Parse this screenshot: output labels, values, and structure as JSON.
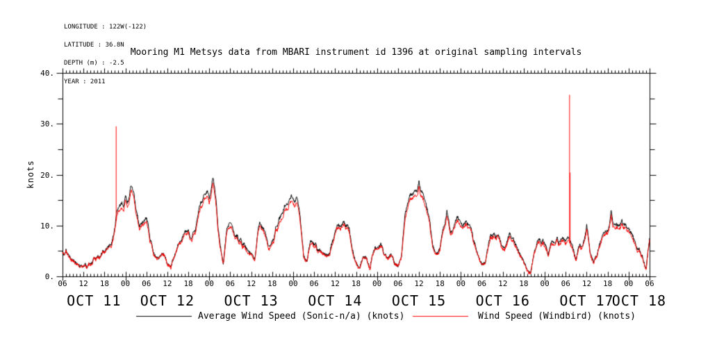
{
  "meta": {
    "longitude": "LONGITUDE : 122W(-122)",
    "latitude": "LATITUDE : 36.8N",
    "depth": "DEPTH (m) : -2.5",
    "year": "YEAR : 2011"
  },
  "title": "Mooring M1 Metsys data from MBARI instrument id 1396 at original sampling intervals",
  "chart_data": {
    "type": "line",
    "title": "Mooring M1 Metsys data from MBARI instrument id 1396 at original sampling intervals",
    "xlabel": "",
    "ylabel": "knots",
    "ylim": [
      0,
      40
    ],
    "y_major_ticks": [
      0,
      10,
      20,
      30,
      40
    ],
    "y_tick_labels": [
      "0.",
      "10.",
      "20.",
      "30.",
      "40."
    ],
    "y_minor_step": 5,
    "x_start": "2011-10-11 06:00",
    "x_end": "2011-10-18 06:00",
    "x_hours_total": 168,
    "x_major_step_hours": 6,
    "x_minor_step_hours": 1,
    "x_hour_labels": [
      "06",
      "12",
      "18",
      "00",
      "06",
      "12",
      "18",
      "00",
      "06",
      "12",
      "18",
      "00",
      "06",
      "12",
      "18",
      "00",
      "06",
      "12",
      "18",
      "00",
      "06",
      "12",
      "18",
      "00",
      "06",
      "12",
      "18",
      "00",
      "06"
    ],
    "x_date_labels": [
      "OCT 11",
      "OCT 12",
      "OCT 13",
      "OCT 14",
      "OCT 15",
      "OCT 16",
      "OCT 17",
      "OCT 18"
    ],
    "x_date_centers_hours": [
      9,
      30,
      54,
      78,
      102,
      126,
      150,
      165
    ],
    "grid": false,
    "legend_position": "bottom",
    "background_color": "#ffffff",
    "axis_color": "#000000",
    "series": [
      {
        "name": "Average Wind Speed (Sonic-n/a) (knots)",
        "color": "#000000",
        "sampling": "hourly estimate of noisy original trace, knots, from Oct 11 06:00 to Oct 18 06:00",
        "hourly_knots": [
          4.5,
          4.8,
          3.6,
          2.8,
          2.2,
          1.8,
          2.2,
          2.0,
          2.6,
          3.4,
          3.8,
          4.3,
          5.0,
          5.6,
          6.8,
          10.0,
          14.5,
          14.0,
          15.2,
          15.5,
          18.3,
          13.5,
          9.8,
          10.4,
          12.0,
          7.9,
          5.2,
          3.2,
          4.6,
          4.4,
          2.3,
          2.0,
          3.8,
          5.6,
          7.5,
          8.4,
          8.6,
          8.0,
          9.2,
          12.5,
          15.0,
          15.5,
          16.3,
          19.0,
          14.2,
          6.5,
          2.6,
          8.6,
          11.0,
          8.6,
          7.6,
          7.0,
          6.3,
          5.3,
          4.4,
          3.4,
          10.0,
          10.2,
          8.6,
          6.0,
          6.6,
          9.2,
          11.6,
          12.6,
          13.6,
          14.6,
          15.3,
          15.0,
          12.0,
          4.4,
          3.0,
          7.2,
          6.6,
          5.6,
          5.0,
          4.6,
          4.2,
          6.2,
          9.0,
          10.2,
          10.8,
          10.2,
          9.6,
          5.6,
          2.6,
          1.4,
          4.2,
          3.4,
          1.8,
          5.0,
          5.5,
          7.0,
          4.5,
          3.5,
          4.5,
          2.5,
          2.0,
          3.5,
          12.0,
          15.5,
          16.0,
          16.5,
          17.8,
          16.5,
          13.5,
          11.0,
          6.5,
          4.2,
          6.0,
          9.5,
          12.4,
          8.5,
          10.5,
          11.2,
          11.0,
          10.0,
          10.5,
          9.5,
          6.5,
          4.0,
          2.2,
          2.6,
          7.0,
          8.2,
          8.2,
          7.6,
          5.2,
          7.0,
          8.4,
          7.6,
          6.2,
          4.4,
          2.8,
          1.2,
          0.9,
          4.6,
          6.6,
          6.9,
          6.2,
          4.2,
          6.8,
          7.2,
          7.0,
          7.3,
          7.2,
          7.3,
          5.6,
          3.6,
          6.4,
          6.0,
          9.8,
          4.6,
          3.0,
          4.6,
          7.2,
          9.2,
          8.6,
          12.2,
          9.8,
          9.4,
          10.4,
          11.0,
          9.6,
          8.0,
          6.4,
          5.0,
          3.4,
          1.8,
          7.2
        ],
        "spikes": []
      },
      {
        "name": "Wind Speed (Windbird) (knots)",
        "color": "#ff0000",
        "sampling": "hourly estimate of noisy original trace, knots, from Oct 11 06:00 to Oct 18 06:00",
        "hourly_knots": [
          4.4,
          4.7,
          3.5,
          2.7,
          2.1,
          1.7,
          2.1,
          1.9,
          2.5,
          3.3,
          3.7,
          4.1,
          4.9,
          5.5,
          6.3,
          9.5,
          13.6,
          13.1,
          14.3,
          14.6,
          17.4,
          12.6,
          9.3,
          9.9,
          11.1,
          7.4,
          4.9,
          3.0,
          4.5,
          4.3,
          2.2,
          1.9,
          3.7,
          5.5,
          7.0,
          7.9,
          8.1,
          7.5,
          8.7,
          11.6,
          14.1,
          14.6,
          15.4,
          17.9,
          13.3,
          6.0,
          2.5,
          8.1,
          10.1,
          8.1,
          7.1,
          6.5,
          5.8,
          4.8,
          4.2,
          3.3,
          9.5,
          9.7,
          8.1,
          5.5,
          6.1,
          8.7,
          10.7,
          11.7,
          12.7,
          13.7,
          14.4,
          14.1,
          11.1,
          4.2,
          2.9,
          6.7,
          6.1,
          5.1,
          4.8,
          4.4,
          4.0,
          5.7,
          8.5,
          9.7,
          10.3,
          9.7,
          9.1,
          5.1,
          2.5,
          1.2,
          4.0,
          3.3,
          1.6,
          4.8,
          5.3,
          6.5,
          4.3,
          3.3,
          4.3,
          2.4,
          1.9,
          3.3,
          11.1,
          14.6,
          15.1,
          15.6,
          16.8,
          15.6,
          12.6,
          10.3,
          6.0,
          4.0,
          5.5,
          9.0,
          11.5,
          8.0,
          9.9,
          10.5,
          10.3,
          9.5,
          9.9,
          9.0,
          6.0,
          3.8,
          2.1,
          2.5,
          6.5,
          7.7,
          7.7,
          7.1,
          4.9,
          6.5,
          7.9,
          7.1,
          5.7,
          4.2,
          2.6,
          1.0,
          0.8,
          4.4,
          6.1,
          6.4,
          5.7,
          4.0,
          6.3,
          6.7,
          6.5,
          6.8,
          6.7,
          6.8,
          5.1,
          3.4,
          5.9,
          5.6,
          9.1,
          4.4,
          2.8,
          4.4,
          6.7,
          8.7,
          8.1,
          11.3,
          9.1,
          8.9,
          9.7,
          10.3,
          9.1,
          7.5,
          5.9,
          4.8,
          3.2,
          1.6,
          6.9
        ],
        "spikes": [
          {
            "t_hours": 15.35,
            "peak_knots": 29.5,
            "when": "OCT 11 ~21:20"
          },
          {
            "t_hours": 145.1,
            "peak_knots": 35.7,
            "when": "OCT 17 ~07:05"
          },
          {
            "t_hours": 145.25,
            "peak_knots": 20.4,
            "when": "OCT 17 ~07:15"
          }
        ]
      }
    ]
  },
  "legend": {
    "sonic_label": "Average Wind Speed (Sonic-n/a) (knots)",
    "windbird_label": "Wind Speed (Windbird) (knots)"
  }
}
